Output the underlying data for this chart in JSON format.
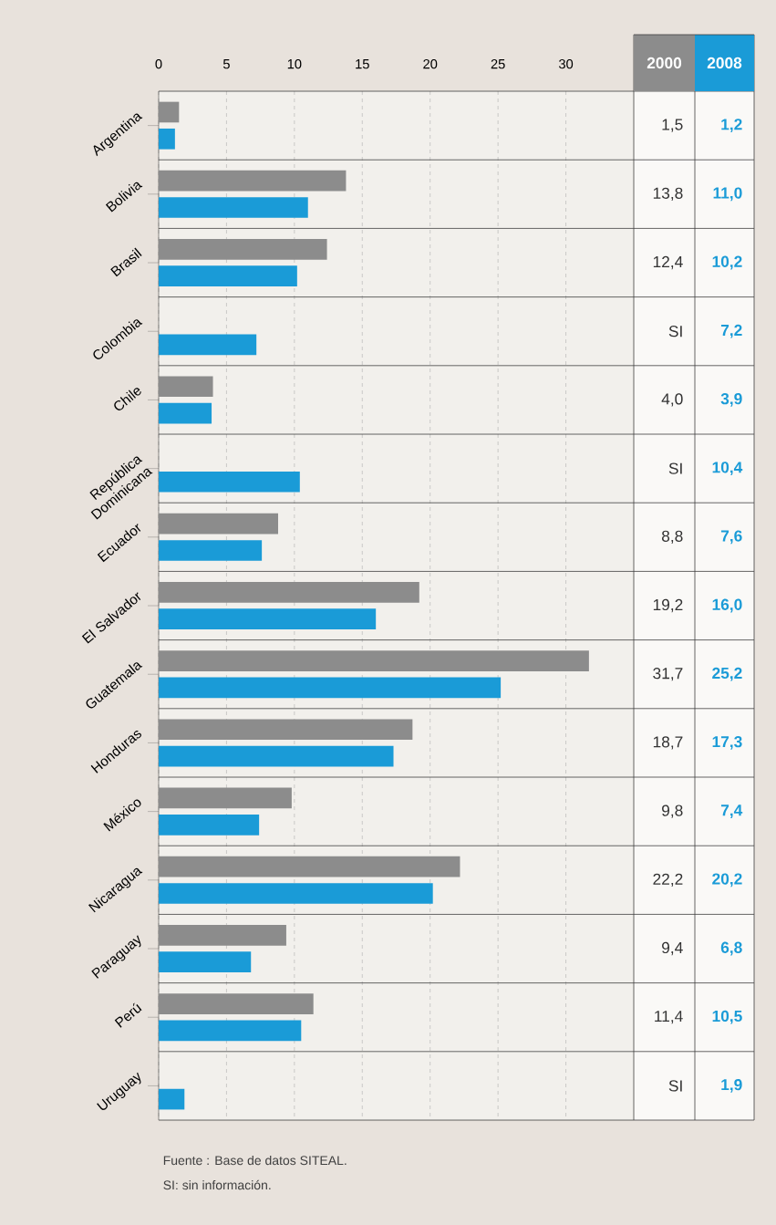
{
  "chart_data": {
    "type": "bar",
    "orientation": "horizontal",
    "categories": [
      "Argentina",
      "Bolivia",
      "Brasil",
      "Colombia",
      "Chile",
      "República Dominicana",
      "Ecuador",
      "El Salvador",
      "Guatemala",
      "Honduras",
      "México",
      "Nicaragua",
      "Paraguay",
      "Perú",
      "Uruguay"
    ],
    "series": [
      {
        "name": "2000",
        "color": "#8c8c8c",
        "values": [
          1.5,
          13.8,
          12.4,
          null,
          4.0,
          null,
          8.8,
          19.2,
          31.7,
          18.7,
          9.8,
          22.2,
          9.4,
          11.4,
          null
        ],
        "value_labels": [
          "1,5",
          "13,8",
          "12,4",
          "SI",
          "4,0",
          "SI",
          "8,8",
          "19,2",
          "31,7",
          "18,7",
          "9,8",
          "22,2",
          "9,4",
          "11,4",
          "SI"
        ]
      },
      {
        "name": "2008",
        "color": "#1a9bd7",
        "values": [
          1.2,
          11.0,
          10.2,
          7.2,
          3.9,
          10.4,
          7.6,
          16.0,
          25.2,
          17.3,
          7.4,
          20.2,
          6.8,
          10.5,
          1.9
        ],
        "value_labels": [
          "1,2",
          "11,0",
          "10,2",
          "7,2",
          "3,9",
          "10,4",
          "7,6",
          "16,0",
          "25,2",
          "17,3",
          "7,4",
          "20,2",
          "6,8",
          "10,5",
          "1,9"
        ]
      }
    ],
    "xlim": [
      0,
      35
    ],
    "xticks": [
      0,
      5,
      10,
      15,
      20,
      25,
      30
    ],
    "grid": true,
    "legend": "top right",
    "annotations": [
      "Fuente : Base de datos SITEAL.",
      "SI: sin información."
    ]
  }
}
